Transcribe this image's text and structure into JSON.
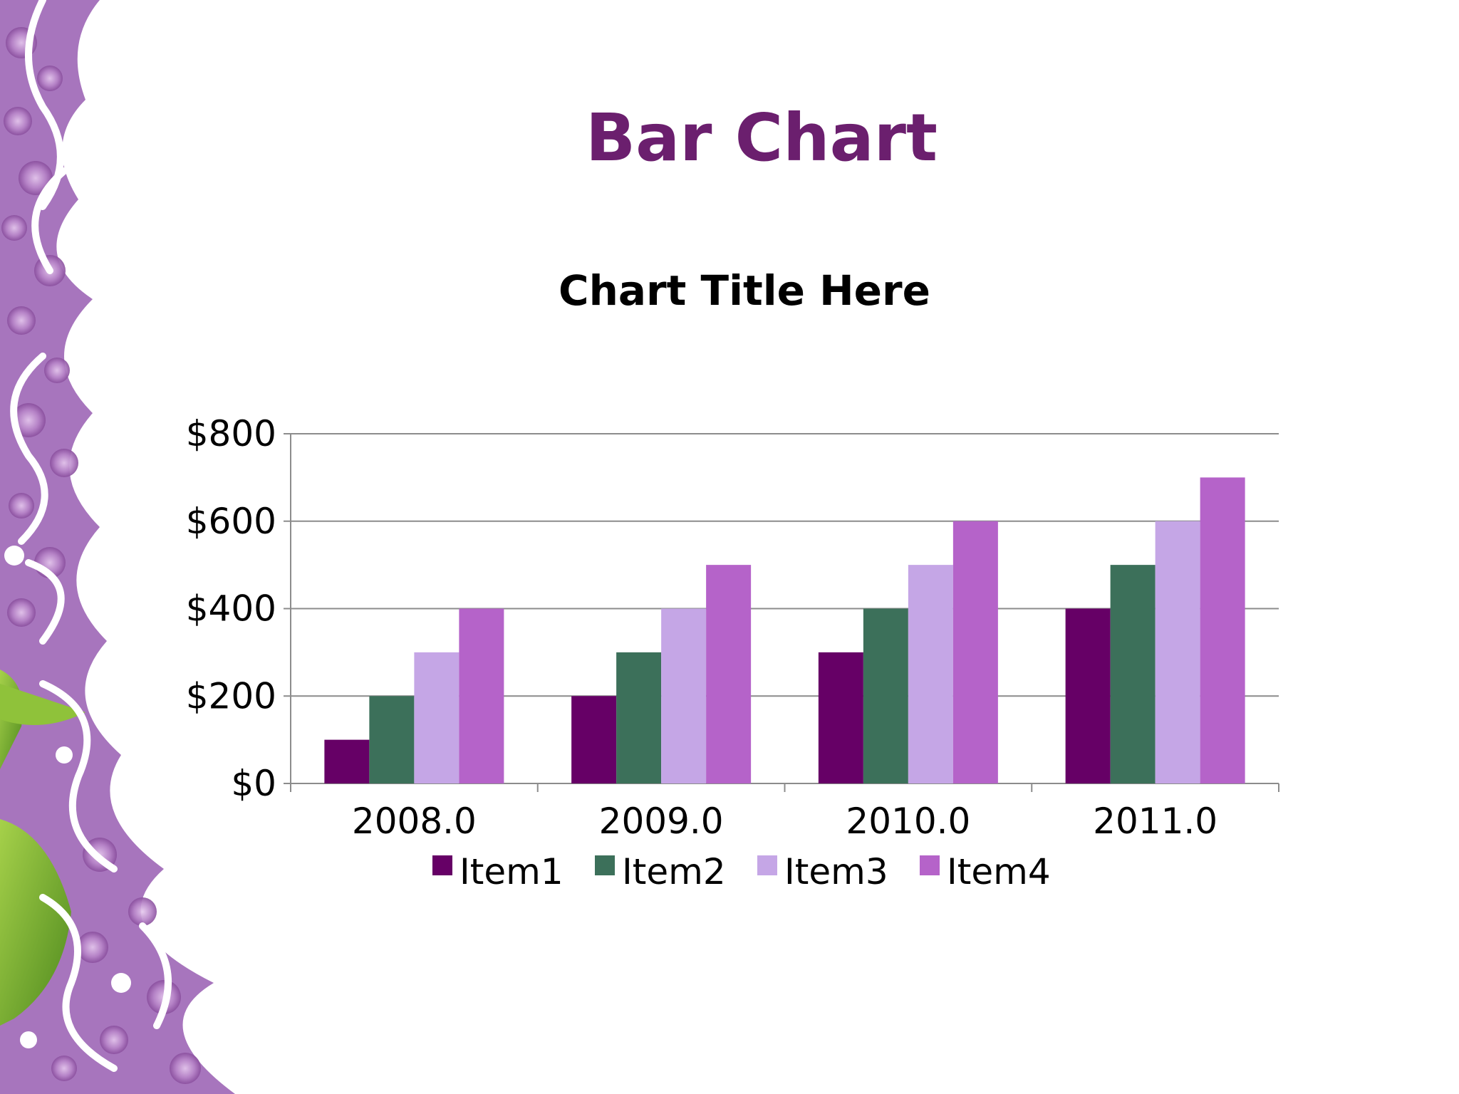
{
  "slide": {
    "title": "Bar Chart"
  },
  "chart_data": {
    "type": "bar",
    "title": "Chart Title Here",
    "categories": [
      "2008.0",
      "2009.0",
      "2010.0",
      "2011.0"
    ],
    "series": [
      {
        "name": "Item1",
        "color": "#660066",
        "values": [
          100,
          200,
          300,
          400
        ]
      },
      {
        "name": "Item2",
        "color": "#3c705a",
        "values": [
          200,
          300,
          400,
          500
        ]
      },
      {
        "name": "Item3",
        "color": "#c5a6e6",
        "values": [
          300,
          400,
          500,
          600
        ]
      },
      {
        "name": "Item4",
        "color": "#b563c9",
        "values": [
          400,
          500,
          600,
          700
        ]
      }
    ],
    "ylim": [
      0,
      800
    ],
    "yticks": [
      0,
      200,
      400,
      600,
      800
    ],
    "ytick_labels": [
      "$0",
      "$200",
      "$400",
      "$600",
      "$800"
    ],
    "grid": true,
    "legend_position": "bottom"
  }
}
